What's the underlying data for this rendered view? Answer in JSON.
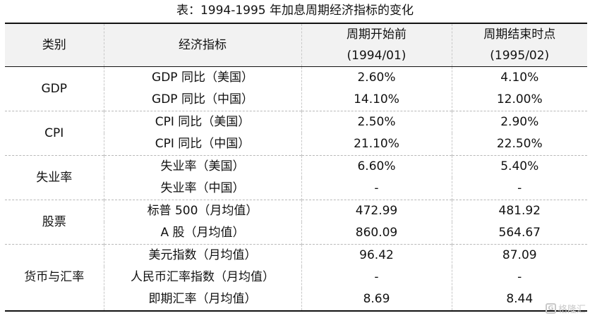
{
  "title": "表：1994-1995 年加息周期经济指标的变化",
  "header": {
    "category": "类别",
    "indicator": "经济指标",
    "before_line1": "周期开始前",
    "before_line2": "(1994/01)",
    "after_line1": "周期结束时点",
    "after_line2": "(1995/02)"
  },
  "groups": [
    {
      "name": "GDP",
      "rows": [
        {
          "indicator": "GDP 同比（美国）",
          "before": "2.60%",
          "after": "4.10%"
        },
        {
          "indicator": "GDP 同比（中国）",
          "before": "14.10%",
          "after": "12.00%"
        }
      ]
    },
    {
      "name": "CPI",
      "rows": [
        {
          "indicator": "CPI 同比（美国）",
          "before": "2.50%",
          "after": "2.90%"
        },
        {
          "indicator": "CPI 同比（中国）",
          "before": "21.10%",
          "after": "22.50%"
        }
      ]
    },
    {
      "name": "失业率",
      "rows": [
        {
          "indicator": "失业率（美国）",
          "before": "6.60%",
          "after": "5.40%"
        },
        {
          "indicator": "失业率（中国）",
          "before": "-",
          "after": "-"
        }
      ]
    },
    {
      "name": "股票",
      "rows": [
        {
          "indicator": "标普 500（月均值）",
          "before": "472.99",
          "after": "481.92"
        },
        {
          "indicator": "A 股（月均值）",
          "before": "860.09",
          "after": "564.67"
        }
      ]
    },
    {
      "name": "货币与汇率",
      "rows": [
        {
          "indicator": "美元指数（月均值）",
          "before": "96.42",
          "after": "87.09"
        },
        {
          "indicator": "人民币汇率指数（月均值）",
          "before": "-",
          "after": "-"
        },
        {
          "indicator": "即期汇率（月均值）",
          "before": "8.69",
          "after": "8.44"
        }
      ]
    }
  ],
  "watermark": {
    "logo_glyph": "G",
    "text": "格隆汇"
  }
}
